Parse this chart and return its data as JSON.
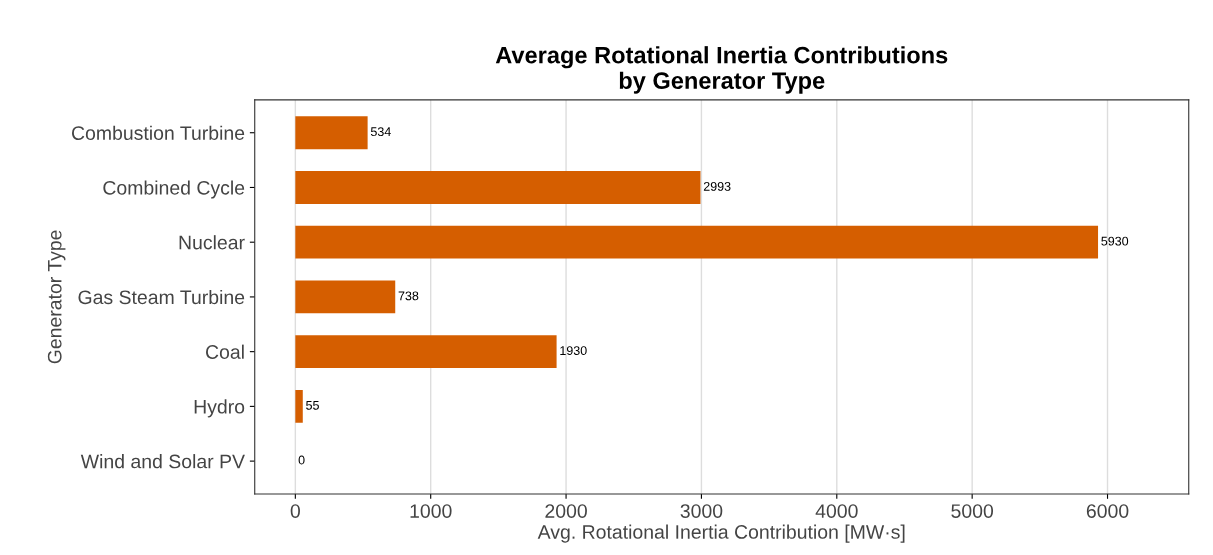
{
  "chart_data": {
    "type": "bar",
    "orientation": "horizontal",
    "title": "Average Rotational Inertia Contributions\nby Generator Type",
    "xlabel": "Avg. Rotational Inertia Contribution [MW·s]",
    "ylabel": "Generator Type",
    "categories": [
      "Combustion Turbine",
      "Combined Cycle",
      "Nuclear",
      "Gas Steam Turbine",
      "Coal",
      "Hydro",
      "Wind and Solar PV"
    ],
    "values": [
      534,
      2993,
      5930,
      738,
      1930,
      55,
      0
    ],
    "color": "#d55e00",
    "data_labels": true,
    "xlim": [
      -300,
      6600
    ],
    "xticks": [
      0,
      1000,
      2000,
      3000,
      4000,
      5000,
      6000
    ],
    "grid": "x"
  }
}
